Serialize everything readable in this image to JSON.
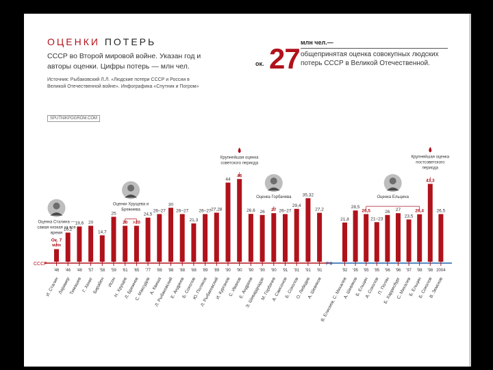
{
  "header": {
    "title_lead": "ОЦЕНКИ",
    "title_rest": "ПОТЕРЬ",
    "subtitle": "СССР во Второй мировой войне. Указан год и авторы оценки. Цифры потерь — млн чел.",
    "source": "Источник: Рыбаковский Л.Л. «Людские потери СССР и России в Великой Отечественной войне». Инфографика «Спутник и Погром»",
    "site": "SPUTNIKPOGROM.COM"
  },
  "headline": {
    "prefix": "ок.",
    "number": "27",
    "unit": "млн чел.—",
    "text": "общепринятая оценка совокупных людских потерь СССР в Великой Отечественной."
  },
  "colors": {
    "bar": "#b0121b",
    "accent": "#b0121b",
    "ussr_axis": "#b0121b",
    "rf_axis": "#1f5fa8",
    "text": "#333333"
  },
  "chart_data": {
    "type": "bar",
    "title": "Оценки потерь СССР во Второй мировой войне",
    "ylabel": "млн чел.",
    "ylim": [
      0,
      48
    ],
    "groups": [
      {
        "axis_label": "СССР",
        "color": "#b0121b"
      },
      {
        "axis_label": "РФ",
        "color": "#1f5fa8"
      }
    ],
    "bars": [
      {
        "group": 0,
        "year": "'46",
        "author": "И. Сталин",
        "value": 7,
        "label": "Ок. 7 млн",
        "highlight": true
      },
      {
        "group": 0,
        "year": "'46",
        "author": "Лоример",
        "value": 16.2,
        "label": "16,2"
      },
      {
        "group": 0,
        "year": "'48",
        "author": "Тимашев",
        "value": 19.6,
        "label": "19,6"
      },
      {
        "group": 0,
        "year": "'57",
        "author": "Г. Хениг",
        "value": 20,
        "label": "20"
      },
      {
        "group": 0,
        "year": "'58",
        "author": "Бирабен",
        "value": 14.7,
        "label": "14,7"
      },
      {
        "group": 0,
        "year": "'59",
        "author": "Исон",
        "value": 25,
        "label": "25"
      },
      {
        "group": 0,
        "year": "'61",
        "author": "Н. Хрущев",
        "value": 20,
        "label": "20",
        "highlight": true
      },
      {
        "group": 0,
        "year": "'65",
        "author": "Л. Брежнев",
        "value": 20,
        "label": ">20",
        "highlight": true
      },
      {
        "group": 0,
        "year": "'77",
        "author": "С. Максудов",
        "value": 24.5,
        "label": "24,5"
      },
      {
        "group": 0,
        "year": "'88",
        "author": "А. Квиша",
        "value": 26.5,
        "label": "26–27"
      },
      {
        "group": 0,
        "year": "'88",
        "author": "Л. Рыбаковский",
        "value": 30,
        "label": "30"
      },
      {
        "group": 0,
        "year": "'88",
        "author": "Е. Андреев",
        "value": 26.5,
        "label": "26–27"
      },
      {
        "group": 0,
        "year": "'88",
        "author": "Б. Соколов",
        "value": 21.3,
        "label": "21,3"
      },
      {
        "group": 0,
        "year": "'89",
        "author": "Ю. Поляков",
        "value": 26.5,
        "label": "26–27"
      },
      {
        "group": 0,
        "year": "'89",
        "author": "Л. Рыбаковский",
        "value": 27.28,
        "label": "27,28"
      },
      {
        "group": 0,
        "year": "'90",
        "author": "И. Курганов",
        "value": 44,
        "label": "44"
      },
      {
        "group": 0,
        "year": "'90",
        "author": "С. Иванов",
        "value": 46,
        "label": "46",
        "highlight": true
      },
      {
        "group": 0,
        "year": "'90",
        "author": "Е. Андреев",
        "value": 26.6,
        "label": "26,6"
      },
      {
        "group": 0,
        "year": "'90",
        "author": "Э. Шеварднадзе",
        "value": 26,
        "label": "26"
      },
      {
        "group": 0,
        "year": "'90",
        "author": "М. Горбачев",
        "value": 27,
        "label": "27",
        "highlight": true
      },
      {
        "group": 0,
        "year": "'91",
        "author": "А. Самсонов",
        "value": 26.5,
        "label": "26–27"
      },
      {
        "group": 0,
        "year": "'91",
        "author": "Б. Соколов",
        "value": 29.4,
        "label": "29,4"
      },
      {
        "group": 0,
        "year": "'91",
        "author": "О. Лебедев",
        "value": 35.32,
        "label": "35,32"
      },
      {
        "group": 0,
        "year": "'91",
        "author": "А. Шевяков",
        "value": 27.2,
        "label": "27,2"
      },
      {
        "group": 1,
        "year": "'92",
        "author": "В. Елисеев, С. Михалев",
        "value": 21.8,
        "label": "21,8"
      },
      {
        "group": 1,
        "year": "'95",
        "author": "А. Шевяков",
        "value": 28.5,
        "label": "28,5"
      },
      {
        "group": 1,
        "year": "'95",
        "author": "Б. Ельцин",
        "value": 26.5,
        "label": "26,5",
        "highlight": true
      },
      {
        "group": 1,
        "year": "'95",
        "author": "А. Соколов",
        "value": 22,
        "label": "21–23"
      },
      {
        "group": 1,
        "year": "'96",
        "author": "П. Полян",
        "value": 26,
        "label": "26"
      },
      {
        "group": 1,
        "year": "'96",
        "author": "Б. Харрисбург",
        "value": 27,
        "label": "27"
      },
      {
        "group": 1,
        "year": "'97",
        "author": "С. Михалев",
        "value": 23.5,
        "label": "23,5"
      },
      {
        "group": 1,
        "year": "'98",
        "author": "Б. Ельцин",
        "value": 26.4,
        "label": "26,4",
        "highlight": true
      },
      {
        "group": 1,
        "year": "'98",
        "author": "Б. Соколов",
        "value": 43.3,
        "label": "43,3",
        "highlight": true
      },
      {
        "group": 1,
        "year": "2004",
        "author": "В. Земсков",
        "value": 26.5,
        "label": "26,5"
      }
    ],
    "annotations": [
      {
        "bar": 0,
        "text": "Оценка Сталина — самая низкая за все время"
      },
      {
        "bar": 6,
        "bar_end": 7,
        "text": "Оценки Хрущева и Брежнева"
      },
      {
        "bar": 16,
        "text": "Крупнейшая оценка советского периода"
      },
      {
        "bar": 19,
        "text": "Оценка Горбачева"
      },
      {
        "bar": 26,
        "bar_end": 31,
        "text": "Оценка Ельцина"
      },
      {
        "bar": 32,
        "text": "Крупнейшая оценка постсоветского периода"
      }
    ]
  }
}
